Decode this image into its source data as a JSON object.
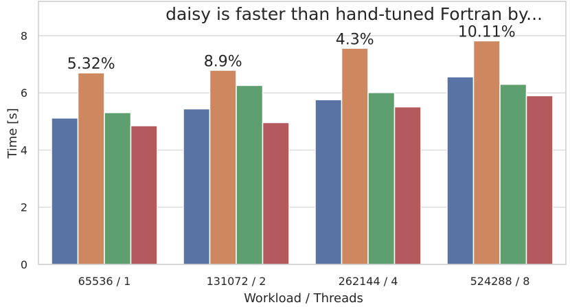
{
  "chart_data": {
    "type": "bar",
    "title": "daisy is faster than hand-tuned Fortran by...",
    "xlabel": "Workload / Threads",
    "ylabel": "Time [s]",
    "ylim": [
      0,
      9.2
    ],
    "yticks": [
      0,
      2,
      4,
      6,
      8
    ],
    "grid": true,
    "categories": [
      "65536 / 1",
      "131072 / 2",
      "262144 / 4",
      "524288 / 8"
    ],
    "series": [
      {
        "values": [
          5.12,
          5.44,
          5.76,
          6.56
        ],
        "color": "#5a73a5"
      },
      {
        "values": [
          6.7,
          6.79,
          7.56,
          7.82
        ],
        "color": "#cd8860"
      },
      {
        "values": [
          5.31,
          6.26,
          6.01,
          6.3
        ],
        "color": "#5e9f6f"
      },
      {
        "values": [
          4.85,
          4.96,
          5.51,
          5.9
        ],
        "color": "#b45a5f"
      }
    ],
    "annotations": [
      "5.32%",
      "8.9%",
      "4.3%",
      "10.11%"
    ]
  }
}
